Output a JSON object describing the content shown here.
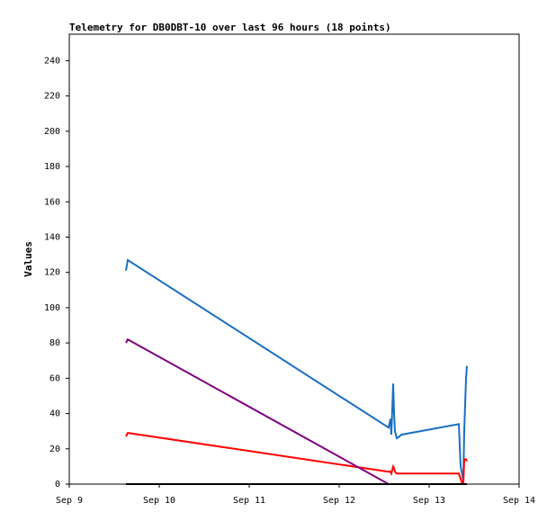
{
  "chart_data": {
    "type": "line",
    "title": "Telemetry for DB0DBT-10 over last 96 hours (18 points)",
    "y_label": "Values",
    "x": [
      0.63,
      0.65,
      3.55,
      3.57,
      3.58,
      3.6,
      3.61,
      3.62,
      3.64,
      3.67,
      3.69,
      4.33,
      4.35,
      4.37,
      4.38,
      4.39,
      4.41,
      4.42
    ],
    "series": [
      {
        "color": "#1a6fc4",
        "values": [
          121,
          127,
          32,
          37,
          28,
          57,
          40,
          30,
          26,
          27,
          28,
          34,
          10,
          5,
          2,
          30,
          60,
          67
        ]
      },
      {
        "color": "#ff0000",
        "values": [
          27,
          29,
          7,
          7,
          6,
          10,
          9,
          7,
          6,
          6,
          6,
          6,
          3,
          0,
          0,
          14,
          14,
          13
        ]
      },
      {
        "color": "#800080",
        "values": [
          80,
          82,
          0,
          0,
          0,
          0,
          0,
          0,
          0,
          0,
          0,
          0,
          0,
          0,
          0,
          0,
          0,
          0
        ]
      },
      {
        "color": "#000000",
        "values": [
          0,
          0,
          0,
          0,
          0,
          0,
          0,
          0,
          0,
          0,
          0,
          0,
          0,
          0,
          0,
          0,
          0,
          0
        ]
      }
    ],
    "xlim": [
      0,
      5
    ],
    "xticks": [
      {
        "value": 0,
        "label": "Sep 9"
      },
      {
        "value": 1,
        "label": "Sep 10"
      },
      {
        "value": 2,
        "label": "Sep 11"
      },
      {
        "value": 3,
        "label": "Sep 12"
      },
      {
        "value": 4,
        "label": "Sep 13"
      },
      {
        "value": 5,
        "label": "Sep 14"
      }
    ],
    "ylim": [
      0,
      255
    ],
    "yticks": [
      0,
      20,
      40,
      60,
      80,
      100,
      120,
      140,
      160,
      180,
      200,
      220,
      240
    ],
    "grid": false
  }
}
